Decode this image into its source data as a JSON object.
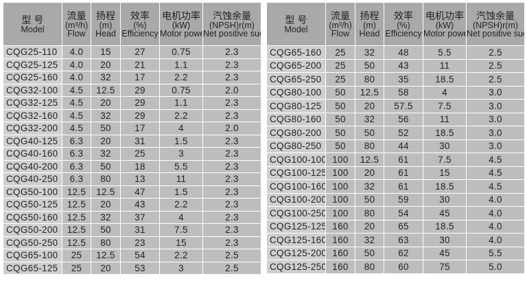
{
  "headers": [
    {
      "cn": "型 号",
      "unit": "",
      "en": "Model"
    },
    {
      "cn": "流量",
      "unit": "(m³/h)",
      "en": "Flow"
    },
    {
      "cn": "扬程",
      "unit": "(m)",
      "en": "Head"
    },
    {
      "cn": "效率",
      "unit": "(%)",
      "en": "Efficiency"
    },
    {
      "cn": "电机功率",
      "unit": "(kW)",
      "en": "Motor power"
    },
    {
      "cn": "汽蚀余量",
      "unit": "(NPSH)r(m)",
      "en": "Net positive suction head"
    }
  ],
  "left_rows": [
    [
      "CQG25-110",
      "4.0",
      "15",
      "27",
      "0.75",
      "2.3"
    ],
    [
      "CQG25-125",
      "4.0",
      "20",
      "21",
      "1.1",
      "2.3"
    ],
    [
      "CQG25-160",
      "4.0",
      "32",
      "17",
      "2.2",
      "2.3"
    ],
    [
      "CQG32-100",
      "4.5",
      "12.5",
      "29",
      "0.75",
      "2.0"
    ],
    [
      "CQG32-125",
      "4.5",
      "20",
      "29",
      "1.1",
      "2.3"
    ],
    [
      "CQG32-160",
      "4.5",
      "32",
      "29",
      "2.2",
      "2.3"
    ],
    [
      "CQG32-200",
      "4.5",
      "50",
      "17",
      "4",
      "2.0"
    ],
    [
      "CQG40-125",
      "6.3",
      "20",
      "31",
      "1.5",
      "2.3"
    ],
    [
      "CQG40-160",
      "6.3",
      "32",
      "25",
      "3",
      "2.3"
    ],
    [
      "CQG40-200",
      "6.3",
      "50",
      "18",
      "5.5",
      "2.3"
    ],
    [
      "CQG40-250",
      "6.3",
      "80",
      "13",
      "11",
      "2.3"
    ],
    [
      "CQG50-100",
      "12.5",
      "12.5",
      "47",
      "1.5",
      "2.3"
    ],
    [
      "CQG50-125",
      "12.5",
      "20",
      "43",
      "2.2",
      "2.3"
    ],
    [
      "CQG50-160",
      "12.5",
      "32",
      "37",
      "4",
      "2.3"
    ],
    [
      "CQG50-200",
      "12.5",
      "50",
      "31",
      "7.5",
      "2.3"
    ],
    [
      "CQG50-250",
      "12.5",
      "80",
      "23",
      "15",
      "2.3"
    ],
    [
      "CQG65-100",
      "25",
      "12.5",
      "54",
      "2.2",
      "2.5"
    ],
    [
      "CQG65-125",
      "25",
      "20",
      "53",
      "3",
      "2.5"
    ]
  ],
  "right_rows": [
    [
      "CQG65-160",
      "25",
      "32",
      "48",
      "5.5",
      "2.5"
    ],
    [
      "CQG65-200",
      "25",
      "50",
      "43",
      "11",
      "2.5"
    ],
    [
      "CQG65-250",
      "25",
      "80",
      "35",
      "18.5",
      "2.5"
    ],
    [
      "CQG80-100",
      "50",
      "12.5",
      "58",
      "4",
      "3.0"
    ],
    [
      "CQG80-125",
      "50",
      "20",
      "57.5",
      "7.5",
      "3.0"
    ],
    [
      "CQG80-160",
      "50",
      "32",
      "56",
      "11",
      "3.0"
    ],
    [
      "CQG80-200",
      "50",
      "50",
      "52",
      "18.5",
      "3.0"
    ],
    [
      "CQG80-250",
      "50",
      "80",
      "44",
      "30",
      "3.0"
    ],
    [
      "CQG100-100",
      "100",
      "12.5",
      "61",
      "7.5",
      "4.5"
    ],
    [
      "CQG100-125",
      "100",
      "20",
      "61",
      "15",
      "4.5"
    ],
    [
      "CQG100-160",
      "100",
      "32",
      "61",
      "18.5",
      "4.5"
    ],
    [
      "CQG100-200",
      "100",
      "50",
      "59",
      "30",
      "4.0"
    ],
    [
      "CQG100-250",
      "100",
      "80",
      "54",
      "45",
      "4.0"
    ],
    [
      "CQG125-125",
      "160",
      "20",
      "65",
      "18.5",
      "4.0"
    ],
    [
      "CQG125-160",
      "160",
      "32",
      "63",
      "30",
      "4.0"
    ],
    [
      "CQG125-200",
      "160",
      "50",
      "62",
      "45",
      "5.5"
    ],
    [
      "CQG125-250",
      "160",
      "80",
      "60",
      "75",
      "5.0"
    ]
  ]
}
